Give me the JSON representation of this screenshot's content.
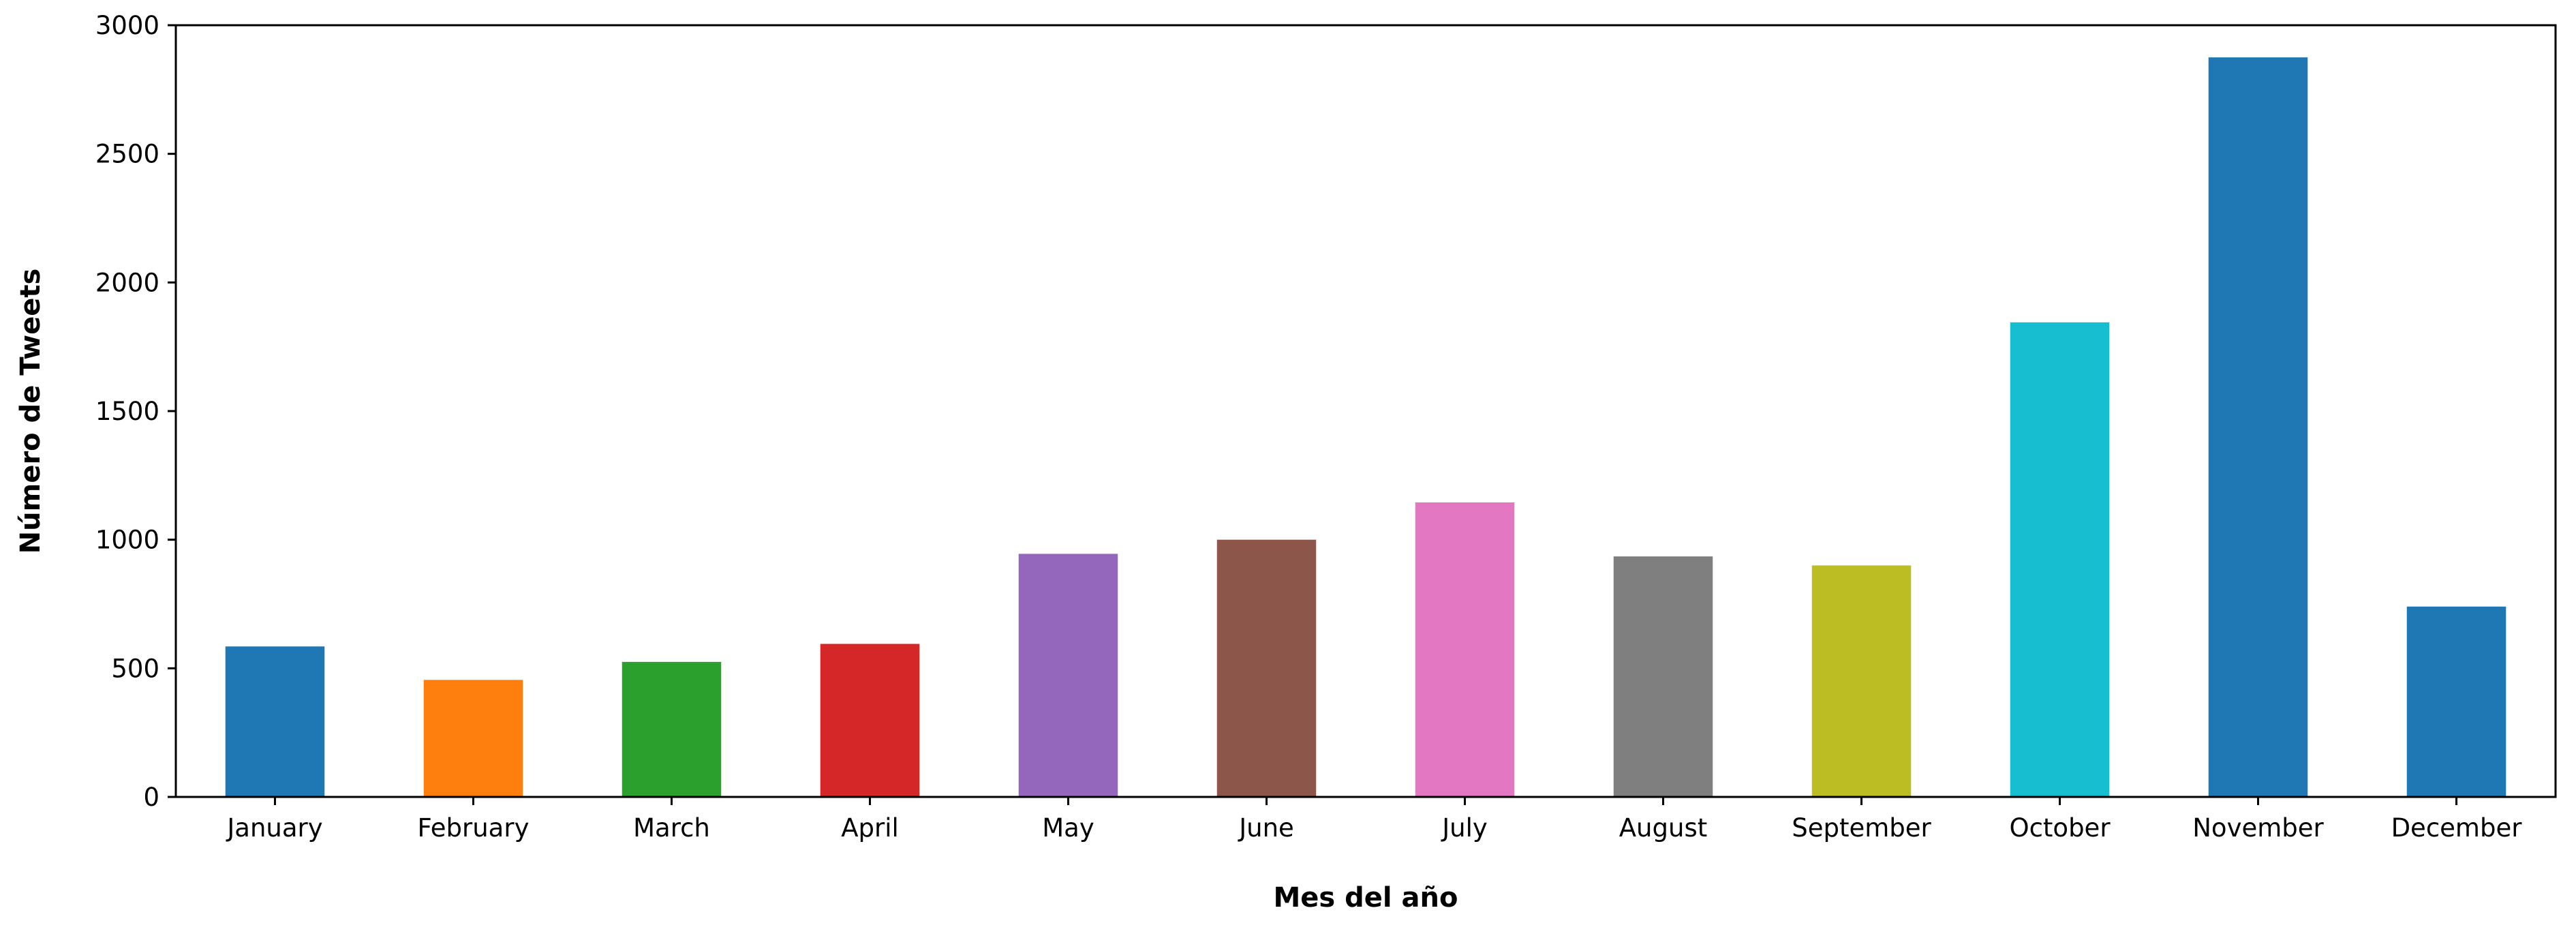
{
  "chart_data": {
    "type": "bar",
    "xlabel": "Mes del año",
    "ylabel": "Número de Tweets",
    "categories": [
      "January",
      "February",
      "March",
      "April",
      "May",
      "June",
      "July",
      "August",
      "September",
      "October",
      "November",
      "December"
    ],
    "values": [
      585,
      455,
      525,
      595,
      945,
      1000,
      1145,
      935,
      900,
      1845,
      2875,
      740
    ],
    "colors": [
      "#1f77b4",
      "#ff7f0e",
      "#2ca02c",
      "#d62728",
      "#9467bd",
      "#8c564b",
      "#e377c2",
      "#7f7f7f",
      "#bcbd22",
      "#17becf",
      "#1f77b4",
      "#1f77b4"
    ],
    "ylim": [
      0,
      3000
    ],
    "yticks": [
      0,
      500,
      1000,
      1500,
      2000,
      2500,
      3000
    ],
    "grid": false,
    "legend": "none"
  }
}
